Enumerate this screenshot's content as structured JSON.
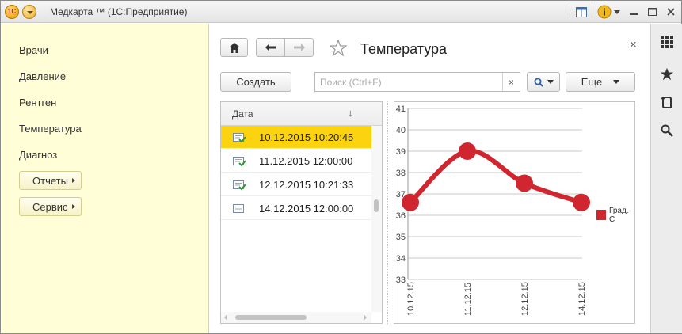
{
  "window": {
    "title": "Медкарта ™ (1С:Предприятие)"
  },
  "sections": {
    "items": [
      "Врачи",
      "Давление",
      "Рентген",
      "Температура",
      "Диагноз"
    ],
    "buttons": [
      "Отчеты",
      "Сервис"
    ]
  },
  "form": {
    "title": "Температура",
    "create_label": "Создать",
    "more_label": "Еще",
    "search_placeholder": "Поиск (Ctrl+F)",
    "clear_label": "×",
    "close_label": "×"
  },
  "table": {
    "column": "Дата",
    "sort_glyph": "↓",
    "rows": [
      {
        "date": "10.12.2015 10:20:45",
        "selected": true,
        "icon": "document-posted-icon"
      },
      {
        "date": "11.12.2015 12:00:00",
        "selected": false,
        "icon": "document-posted-icon"
      },
      {
        "date": "12.12.2015 10:21:33",
        "selected": false,
        "icon": "document-posted-icon"
      },
      {
        "date": "14.12.2015 12:00:00",
        "selected": false,
        "icon": "document-icon"
      }
    ]
  },
  "chart_data": {
    "type": "line",
    "categories": [
      "10.12.15",
      "11.12.15",
      "12.12.15",
      "14.12.15"
    ],
    "series": [
      {
        "name": "Град. С",
        "values": [
          36.6,
          39.0,
          37.5,
          36.6
        ],
        "color": "#d0262f"
      }
    ],
    "ylim": [
      33,
      41
    ],
    "yticks": [
      33,
      34,
      35,
      36,
      37,
      38,
      39,
      40,
      41
    ],
    "grid": true,
    "legend": "right",
    "smooth": true
  },
  "icons": {
    "right_panel": [
      "apps-grid-icon",
      "star-icon",
      "history-icon",
      "search-icon"
    ]
  }
}
